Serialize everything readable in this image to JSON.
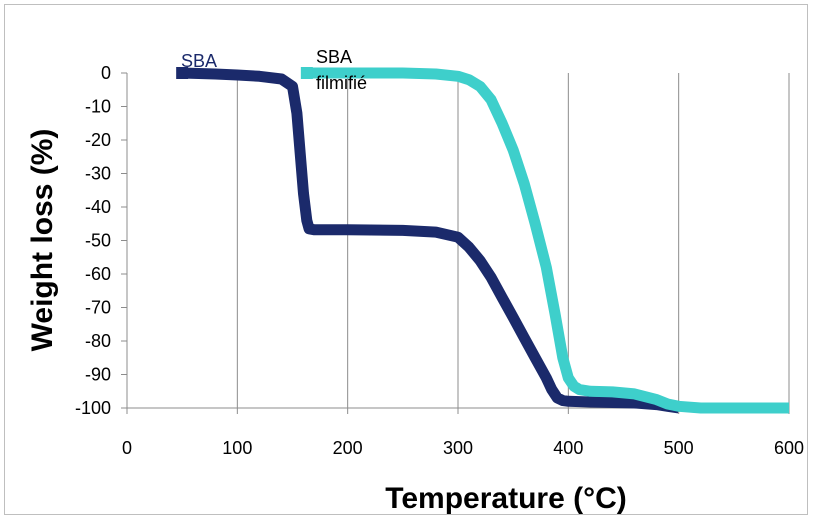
{
  "chart_data": {
    "type": "line",
    "title": "",
    "xlabel": "Temperature (°C)",
    "ylabel": "Weight loss (%)",
    "xlim": [
      0,
      600
    ],
    "ylim": [
      -100,
      0
    ],
    "x_ticks": [
      0,
      100,
      200,
      300,
      400,
      500,
      600
    ],
    "y_ticks": [
      0,
      -10,
      -20,
      -30,
      -40,
      -50,
      -60,
      -70,
      -80,
      -90,
      -100
    ],
    "grid": "vertical",
    "legend": "none",
    "series": [
      {
        "name": "SBA",
        "color": "#1b2a6b",
        "points": [
          [
            50,
            0
          ],
          [
            80,
            -0.3
          ],
          [
            100,
            -0.6
          ],
          [
            120,
            -1
          ],
          [
            140,
            -1.8
          ],
          [
            150,
            -4
          ],
          [
            154,
            -12
          ],
          [
            157,
            -24
          ],
          [
            160,
            -36
          ],
          [
            163,
            -44
          ],
          [
            165,
            -46.5
          ],
          [
            170,
            -46.8
          ],
          [
            200,
            -46.8
          ],
          [
            250,
            -47
          ],
          [
            280,
            -47.5
          ],
          [
            300,
            -49
          ],
          [
            310,
            -52
          ],
          [
            320,
            -56
          ],
          [
            330,
            -61
          ],
          [
            340,
            -67
          ],
          [
            350,
            -73
          ],
          [
            360,
            -79
          ],
          [
            370,
            -85
          ],
          [
            380,
            -91
          ],
          [
            385,
            -94.5
          ],
          [
            390,
            -97
          ],
          [
            395,
            -97.8
          ],
          [
            400,
            -98
          ],
          [
            420,
            -98.2
          ],
          [
            460,
            -98.5
          ],
          [
            480,
            -99
          ],
          [
            490,
            -99.5
          ],
          [
            500,
            -100
          ]
        ]
      },
      {
        "name": "SBA filmifié",
        "color": "#3ecfcb",
        "points": [
          [
            163,
            0
          ],
          [
            200,
            0
          ],
          [
            250,
            0
          ],
          [
            280,
            -0.3
          ],
          [
            300,
            -1
          ],
          [
            310,
            -2
          ],
          [
            320,
            -4
          ],
          [
            330,
            -8
          ],
          [
            340,
            -15
          ],
          [
            350,
            -23
          ],
          [
            360,
            -33
          ],
          [
            370,
            -45
          ],
          [
            380,
            -58
          ],
          [
            388,
            -72
          ],
          [
            395,
            -85
          ],
          [
            400,
            -91
          ],
          [
            405,
            -93.5
          ],
          [
            410,
            -94.5
          ],
          [
            420,
            -95
          ],
          [
            440,
            -95.2
          ],
          [
            460,
            -95.8
          ],
          [
            480,
            -97.5
          ],
          [
            490,
            -98.8
          ],
          [
            500,
            -99.5
          ],
          [
            520,
            -100
          ],
          [
            560,
            -100
          ],
          [
            600,
            -100
          ]
        ]
      }
    ],
    "annotations": [
      {
        "text": "SBA",
        "series": 0
      },
      {
        "text": "SBA",
        "series": 1
      },
      {
        "text": "filmifié",
        "series": 1
      }
    ]
  }
}
